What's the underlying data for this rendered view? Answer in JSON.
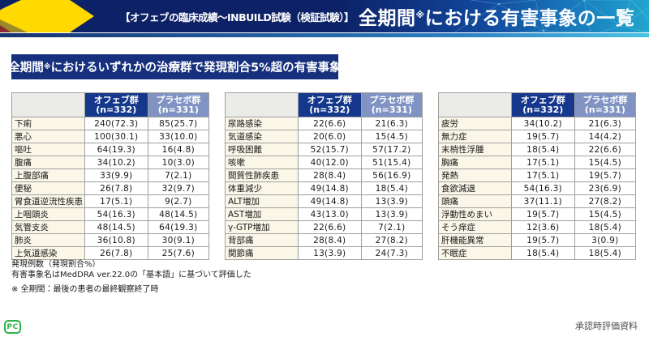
{
  "header": {
    "title_prefix": "【オフェブの臨床成績～INBUILD試験（検証試験）】",
    "title_main": "全期間",
    "title_mark": "※",
    "title_rest": "における有害事象の一覧"
  },
  "banner": {
    "lead": "全期間",
    "mark": "※",
    "rest": "におけるいずれかの治療群で発現割合5%超の有害事象"
  },
  "columns": {
    "group1": "オフェブ群",
    "n1": "(n=332)",
    "group2": "プラセボ群",
    "n2": "(n=331)"
  },
  "tables": [
    {
      "rows": [
        {
          "label": "下痢",
          "ofev": "240(72.3)",
          "placebo": "85(25.7)"
        },
        {
          "label": "悪心",
          "ofev": "100(30.1)",
          "placebo": "33(10.0)"
        },
        {
          "label": "嘔吐",
          "ofev": "64(19.3)",
          "placebo": "16(4.8)"
        },
        {
          "label": "腹痛",
          "ofev": "34(10.2)",
          "placebo": "10(3.0)"
        },
        {
          "label": "上腹部痛",
          "ofev": "33(9.9)",
          "placebo": "7(2.1)"
        },
        {
          "label": "便秘",
          "ofev": "26(7.8)",
          "placebo": "32(9.7)"
        },
        {
          "label": "胃食道逆流性疾患",
          "ofev": "17(5.1)",
          "placebo": "9(2.7)"
        },
        {
          "label": "上咽頭炎",
          "ofev": "54(16.3)",
          "placebo": "48(14.5)"
        },
        {
          "label": "気管支炎",
          "ofev": "48(14.5)",
          "placebo": "64(19.3)"
        },
        {
          "label": "肺炎",
          "ofev": "36(10.8)",
          "placebo": "30(9.1)"
        },
        {
          "label": "上気道感染",
          "ofev": "26(7.8)",
          "placebo": "25(7.6)"
        }
      ]
    },
    {
      "rows": [
        {
          "label": "尿路感染",
          "ofev": "22(6.6)",
          "placebo": "21(6.3)"
        },
        {
          "label": "気道感染",
          "ofev": "20(6.0)",
          "placebo": "15(4.5)"
        },
        {
          "label": "呼吸困難",
          "ofev": "52(15.7)",
          "placebo": "57(17.2)"
        },
        {
          "label": "咳嗽",
          "ofev": "40(12.0)",
          "placebo": "51(15.4)"
        },
        {
          "label": "間質性肺疾患",
          "ofev": "28(8.4)",
          "placebo": "56(16.9)"
        },
        {
          "label": "体重減少",
          "ofev": "49(14.8)",
          "placebo": "18(5.4)"
        },
        {
          "label": "ALT増加",
          "ofev": "49(14.8)",
          "placebo": "13(3.9)"
        },
        {
          "label": "AST増加",
          "ofev": "43(13.0)",
          "placebo": "13(3.9)"
        },
        {
          "label": "γ-GTP増加",
          "ofev": "22(6.6)",
          "placebo": "7(2.1)"
        },
        {
          "label": "背部痛",
          "ofev": "28(8.4)",
          "placebo": "27(8.2)"
        },
        {
          "label": "関節痛",
          "ofev": "13(3.9)",
          "placebo": "24(7.3)"
        }
      ]
    },
    {
      "rows": [
        {
          "label": "疲労",
          "ofev": "34(10.2)",
          "placebo": "21(6.3)"
        },
        {
          "label": "無力症",
          "ofev": "19(5.7)",
          "placebo": "14(4.2)"
        },
        {
          "label": "末梢性浮腫",
          "ofev": "18(5.4)",
          "placebo": "22(6.6)"
        },
        {
          "label": "胸痛",
          "ofev": "17(5.1)",
          "placebo": "15(4.5)"
        },
        {
          "label": "発熱",
          "ofev": "17(5.1)",
          "placebo": "19(5.7)"
        },
        {
          "label": "食欲減退",
          "ofev": "54(16.3)",
          "placebo": "23(6.9)"
        },
        {
          "label": "頭痛",
          "ofev": "37(11.1)",
          "placebo": "27(8.2)"
        },
        {
          "label": "浮動性めまい",
          "ofev": "19(5.7)",
          "placebo": "15(4.5)"
        },
        {
          "label": "そう痒症",
          "ofev": "12(3.6)",
          "placebo": "18(5.4)"
        },
        {
          "label": "肝機能異常",
          "ofev": "19(5.7)",
          "placebo": "3(0.9)"
        },
        {
          "label": "不眠症",
          "ofev": "18(5.4)",
          "placebo": "18(5.4)"
        }
      ]
    }
  ],
  "footnotes": {
    "line1": "発現例数（発現割合%）",
    "line2": "有害事象名はMedDRA ver.22.0の「基本語」に基づいて評価した",
    "note": "※ 全期間：最後の患者の最終観察終了時"
  },
  "footer": {
    "logo_text": "PC",
    "approval": "承認時評価資料"
  },
  "colors": {
    "header_navy": "#0c2166",
    "header_teal": "#21a5cd",
    "accent_yellow": "#ffd900",
    "accent_gold": "#c9a227",
    "banner_navy": "#16307d",
    "col_ofev": "#15388c",
    "col_placebo": "#8093c3",
    "row_label_bg": "#faf7e8",
    "logo_green": "#2db34a"
  }
}
